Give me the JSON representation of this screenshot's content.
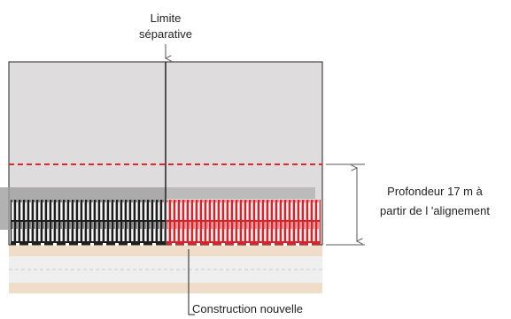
{
  "labels": {
    "limite_line1": "Limite",
    "limite_line2": "séparative",
    "profondeur_line1": "Profondeur 17 m à",
    "profondeur_line2": "partir de l 'alignement",
    "construction": "Construction nouvelle"
  },
  "colors": {
    "plot_fill": "#dedcdc",
    "plot_border": "#222222",
    "depth_limit_line": "#e3262b",
    "new_construction": "#d8232a",
    "existing_building": "#1e1e1e",
    "sidewalk": "#f0ddc9",
    "road": "#efefef",
    "annotation": "#555555"
  }
}
